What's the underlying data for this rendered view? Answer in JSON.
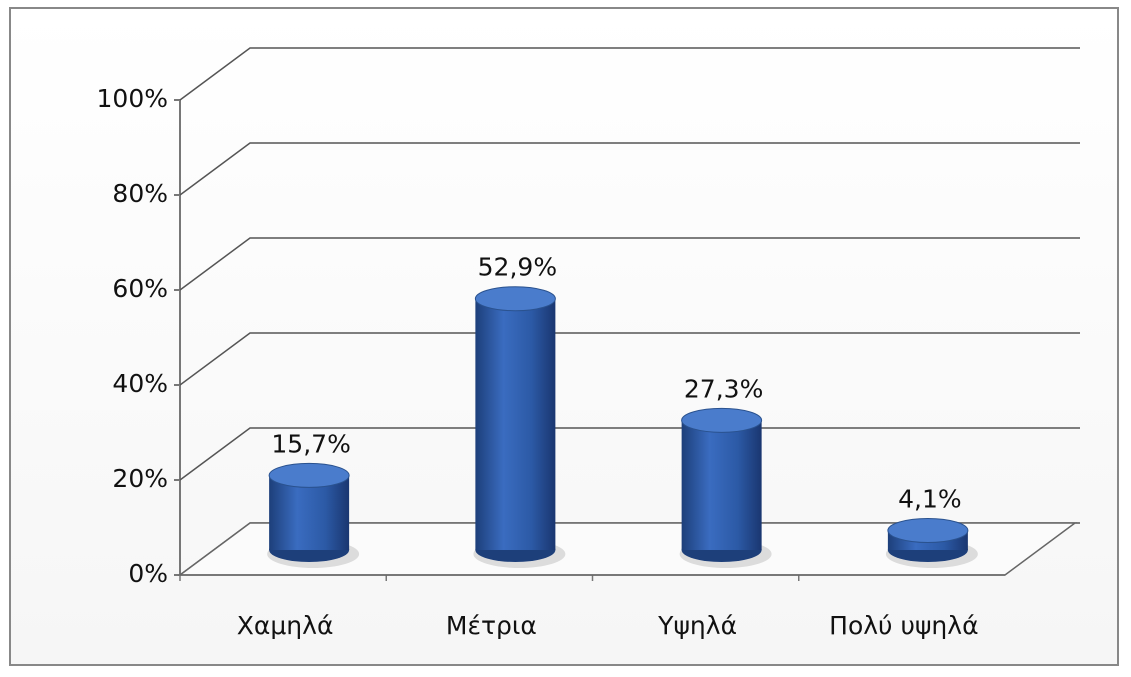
{
  "chart_data": {
    "type": "bar3d",
    "categories": [
      "Χαμηλά",
      "Μέτρια",
      "Υψηλά",
      "Πολύ υψηλά"
    ],
    "values": [
      15.7,
      52.9,
      27.3,
      4.1
    ],
    "value_labels": [
      "15,7%",
      "52,9%",
      "27,3%",
      "4,1%"
    ],
    "color": "#2f5fae",
    "ylim": [
      0,
      100
    ],
    "yticks": [
      {
        "value": 0,
        "label": "0%"
      },
      {
        "value": 20,
        "label": "20%"
      },
      {
        "value": 40,
        "label": "40%"
      },
      {
        "value": 60,
        "label": "60%"
      },
      {
        "value": 80,
        "label": "80%"
      },
      {
        "value": 100,
        "label": "100%"
      }
    ],
    "grid": true
  }
}
